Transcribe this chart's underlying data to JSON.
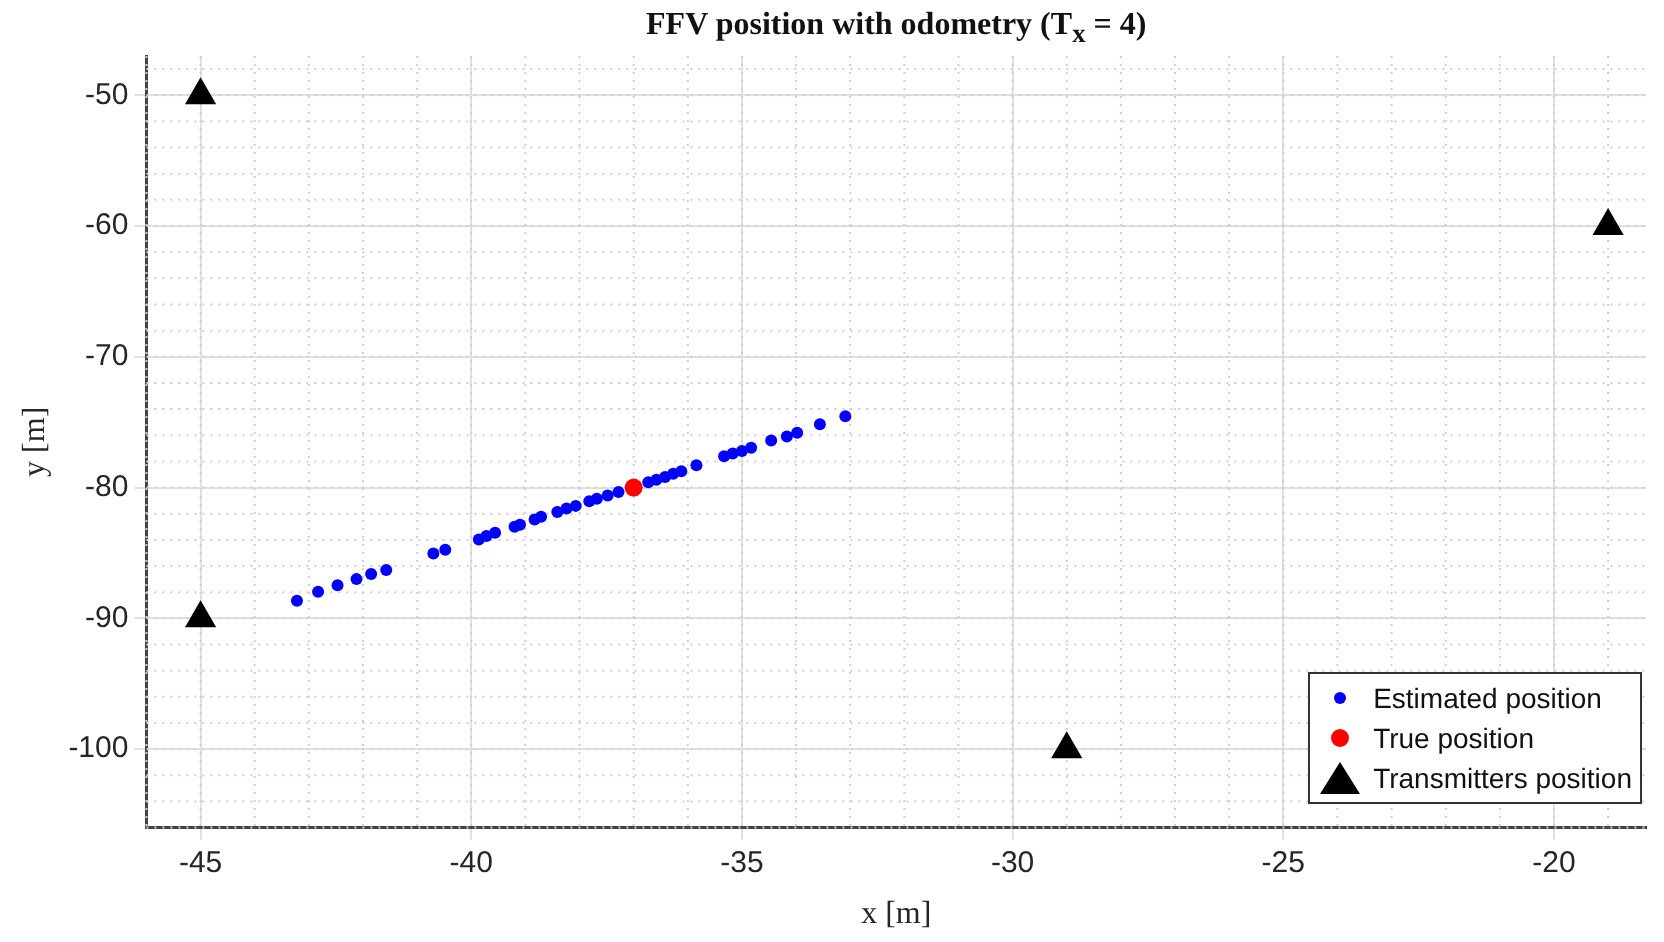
{
  "chart_data": {
    "type": "scatter",
    "title": "FFV position with odometry (T$_{x}$ = 4)",
    "xlabel": "x [m]",
    "ylabel": "y [m]",
    "xlim": [
      -46,
      -18.3
    ],
    "ylim": [
      -106,
      -47
    ],
    "xticks": [
      -45,
      -40,
      -35,
      -30,
      -25,
      -20
    ],
    "yticks": [
      -100,
      -90,
      -80,
      -70,
      -60,
      -50
    ],
    "grid": true,
    "legend": "bottom right",
    "series": [
      {
        "name": "Estimated position",
        "color": "#0000ff",
        "marker": "circle",
        "x": [
          -43.22,
          -42.83,
          -42.47,
          -42.12,
          -41.85,
          -41.57,
          -40.7,
          -40.48,
          -39.86,
          -39.72,
          -39.56,
          -39.2,
          -39.1,
          -38.83,
          -38.71,
          -38.41,
          -38.24,
          -38.07,
          -37.82,
          -37.68,
          -37.48,
          -37.28,
          -36.73,
          -36.58,
          -36.42,
          -36.27,
          -36.12,
          -35.84,
          -35.33,
          -35.17,
          -35.0,
          -34.83,
          -34.46,
          -34.17,
          -33.98,
          -33.56,
          -33.09
        ],
        "values": [
          -88.65,
          -87.97,
          -87.46,
          -87.0,
          -86.6,
          -86.3,
          -85.05,
          -84.75,
          -83.97,
          -83.7,
          -83.46,
          -83.0,
          -82.85,
          -82.44,
          -82.23,
          -81.87,
          -81.6,
          -81.4,
          -81.05,
          -80.85,
          -80.6,
          -80.34,
          -79.6,
          -79.4,
          -79.2,
          -78.95,
          -78.75,
          -78.3,
          -77.6,
          -77.4,
          -77.2,
          -76.95,
          -76.4,
          -76.1,
          -75.8,
          -75.15,
          -74.54
        ]
      },
      {
        "name": "True position",
        "color": "#ff0000",
        "marker": "circle",
        "x": [
          -37.0
        ],
        "values": [
          -80.0
        ]
      },
      {
        "name": "Transmitters position",
        "color": "#000000",
        "marker": "triangle",
        "x": [
          -45,
          -45,
          -29,
          -19
        ],
        "values": [
          -50,
          -90,
          -100,
          -60
        ]
      }
    ]
  }
}
